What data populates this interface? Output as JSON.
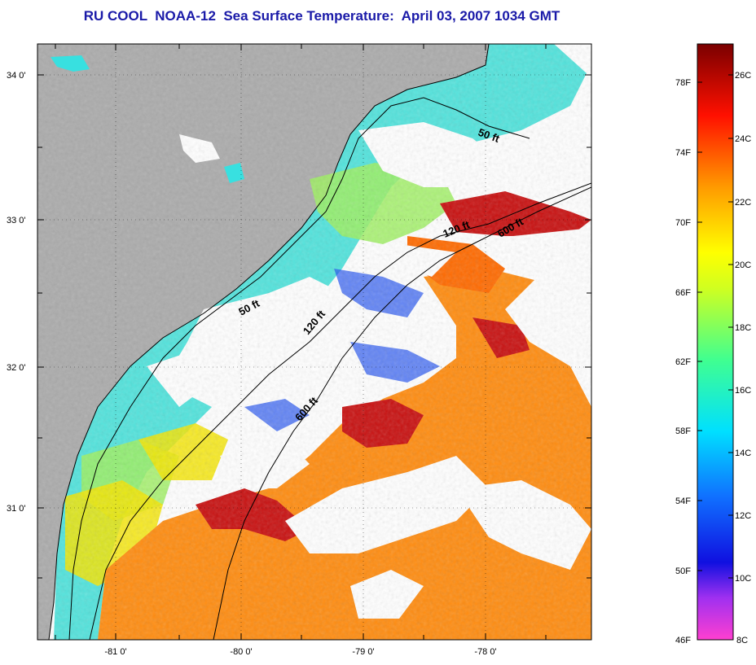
{
  "title": "RU COOL  NOAA-12  Sea Surface Temperature:  April 03, 2007 1034 GMT",
  "map": {
    "lat_labels": [
      "34 0'",
      "33 0'",
      "32 0'",
      "31 0'"
    ],
    "lon_labels": [
      "-81 0'",
      "-80 0'",
      "-79 0'",
      "-78 0'"
    ],
    "contours": [
      "50 ft",
      "120 ft",
      "600 ft",
      "50 ft",
      "120 ft",
      "600 ft"
    ]
  },
  "colorbar": {
    "fahrenheit": [
      "78F",
      "74F",
      "70F",
      "66F",
      "62F",
      "58F",
      "54F",
      "50F",
      "46F"
    ],
    "celsius": [
      "26C",
      "24C",
      "22C",
      "20C",
      "18C",
      "16C",
      "14C",
      "12C",
      "10C",
      "8C"
    ]
  },
  "colors": {
    "land": "#ababab",
    "cloud": "#ffffff",
    "title": "#1a1aa8"
  }
}
